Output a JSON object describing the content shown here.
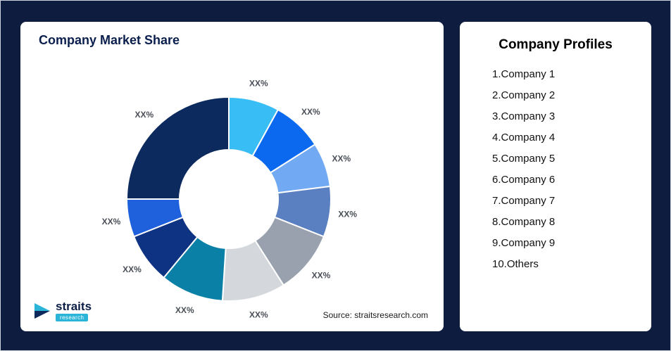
{
  "left_card": {
    "title": "Company Market Share",
    "source": "Source: straitsresearch.com"
  },
  "logo": {
    "brand": "straits",
    "sub": "research"
  },
  "right_card": {
    "title": "Company Profiles",
    "items": [
      "1.Company 1",
      "2.Company 2",
      "3.Company 3",
      "4.Company 4",
      "5.Company 5",
      "6.Company 6",
      "7.Company 7",
      "8.Company 8",
      "9.Company 9",
      "10.Others"
    ]
  },
  "chart_data": {
    "type": "pie",
    "variant": "donut",
    "title": "Company Market Share",
    "legend": "none",
    "start_angle_deg": 0,
    "direction": "clockwise",
    "note": "slice percentages estimated from arc sizes; on-chart labels are XX% placeholders",
    "segments": [
      {
        "name": "Company 1",
        "label": "XX%",
        "value": 8,
        "color": "#38bdf5"
      },
      {
        "name": "Company 2",
        "label": "XX%",
        "value": 8,
        "color": "#0a69ee"
      },
      {
        "name": "Company 3",
        "label": "XX%",
        "value": 7,
        "color": "#72a9f3"
      },
      {
        "name": "Company 4",
        "label": "XX%",
        "value": 8,
        "color": "#5b80c1"
      },
      {
        "name": "Company 5",
        "label": "XX%",
        "value": 10,
        "color": "#98a1ad"
      },
      {
        "name": "Company 6",
        "label": "XX%",
        "value": 10,
        "color": "#d4d8dd"
      },
      {
        "name": "Company 7",
        "label": "XX%",
        "value": 10,
        "color": "#0b80a7"
      },
      {
        "name": "Company 8",
        "label": "XX%",
        "value": 8,
        "color": "#0e3382"
      },
      {
        "name": "Company 9",
        "label": "XX%",
        "value": 6,
        "color": "#1f61dd"
      },
      {
        "name": "Others",
        "label": "XX%",
        "value": 25,
        "color": "#0c2a5e"
      }
    ]
  }
}
